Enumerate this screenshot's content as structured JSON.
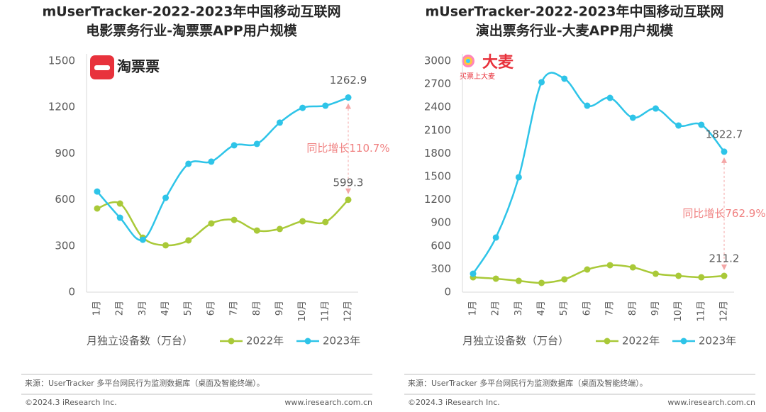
{
  "chart_data": [
    {
      "type": "line",
      "title": "mUserTracker-2022-2023年中国移动互联网",
      "subtitle": "电影票务行业-淘票票APP用户规模",
      "logo": "淘票票",
      "ylabel": "月独立设备数（万台）",
      "categories": [
        "1月",
        "2月",
        "3月",
        "4月",
        "5月",
        "6月",
        "7月",
        "8月",
        "9月",
        "10月",
        "11月",
        "12月"
      ],
      "series": [
        {
          "name": "2022年",
          "color": "#a9c938",
          "values": [
            543,
            575,
            354,
            304,
            336,
            446,
            469,
            400,
            410,
            460,
            455,
            599.3
          ]
        },
        {
          "name": "2023年",
          "color": "#2ec4e8",
          "values": [
            653,
            483,
            340,
            612,
            833,
            847,
            953,
            962,
            1100,
            1196,
            1210,
            1262.9
          ]
        }
      ],
      "annotation": "同比增长110.7%",
      "ylim": [
        0,
        1500
      ],
      "yticks": [
        0,
        300,
        600,
        900,
        1200,
        1500
      ]
    },
    {
      "type": "line",
      "title": "mUserTracker-2022-2023年中国移动互联网",
      "subtitle": "演出票务行业-大麦APP用户规模",
      "logo": "大麦",
      "logo_slogan": "买票上大麦",
      "ylabel": "月独立设备数（万台）",
      "categories": [
        "1月",
        "2月",
        "3月",
        "4月",
        "5月",
        "6月",
        "7月",
        "8月",
        "9月",
        "10月",
        "11月",
        "12月"
      ],
      "series": [
        {
          "name": "2022年",
          "color": "#a9c938",
          "values": [
            193,
            175,
            147,
            120,
            166,
            294,
            350,
            322,
            239,
            212,
            193,
            211.2
          ]
        },
        {
          "name": "2023年",
          "color": "#2ec4e8",
          "values": [
            239,
            709,
            1491,
            2724,
            2770,
            2420,
            2521,
            2264,
            2383,
            2163,
            2172,
            1822.7
          ]
        }
      ],
      "annotation": "同比增长762.9%",
      "ylim": [
        0,
        3000
      ],
      "yticks": [
        0,
        300,
        600,
        900,
        1200,
        1500,
        1800,
        2100,
        2400,
        2700,
        3000
      ]
    }
  ],
  "footers": [
    {
      "source": "来源：UserTracker 多平台网民行为监测数据库（桌面及智能终端）。",
      "copyright": "©2024.3 iResearch Inc.",
      "website": "www.iresearch.com.cn"
    },
    {
      "source": "来源：UserTracker 多平台网民行为监测数据库（桌面及智能终端）。",
      "copyright": "©2024.3 iResearch Inc.",
      "website": "www.iresearch.com.cn"
    }
  ]
}
